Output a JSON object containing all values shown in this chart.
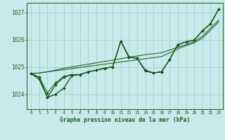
{
  "background_color": "#c8eaea",
  "grid_color": "#aacfcf",
  "line_color": "#1a5c1a",
  "title": "Graphe pression niveau de la mer (hPa)",
  "xlabel_hours": [
    0,
    1,
    2,
    3,
    4,
    5,
    6,
    7,
    8,
    9,
    10,
    11,
    12,
    13,
    14,
    15,
    16,
    17,
    18,
    19,
    20,
    21,
    22,
    23
  ],
  "yticks": [
    1024,
    1025,
    1026,
    1027
  ],
  "ylim": [
    1023.45,
    1027.35
  ],
  "xlim": [
    -0.5,
    23.5
  ],
  "series": [
    [
      1024.75,
      1024.62,
      1023.88,
      1024.0,
      1024.22,
      1024.68,
      1024.72,
      1024.82,
      1024.88,
      1024.95,
      1025.0,
      1025.95,
      1025.38,
      1025.32,
      1024.88,
      1024.78,
      1024.82,
      1025.28,
      1025.82,
      1025.92,
      1025.98,
      1026.32,
      1026.58,
      1027.12
    ],
    [
      1024.75,
      1024.62,
      1023.88,
      1024.0,
      1024.22,
      1024.68,
      1024.72,
      1024.82,
      1024.88,
      1024.95,
      1025.0,
      1025.95,
      1025.38,
      1025.32,
      1024.88,
      1024.78,
      1024.82,
      1025.28,
      1025.82,
      1025.92,
      1025.98,
      1026.32,
      1026.58,
      1027.12
    ],
    [
      1024.75,
      1024.55,
      1023.88,
      1024.35,
      1024.62,
      1024.72,
      1024.72,
      1024.82,
      1024.88,
      1024.95,
      1025.0,
      1025.95,
      1025.35,
      1025.32,
      1024.85,
      1024.78,
      1024.82,
      1025.28,
      1025.82,
      1025.92,
      1025.98,
      1026.32,
      1026.58,
      1027.12
    ],
    [
      1024.75,
      1024.55,
      1023.88,
      1024.35,
      1024.62,
      1024.72,
      1024.72,
      1024.82,
      1024.88,
      1024.95,
      1025.0,
      1025.95,
      1025.35,
      1025.32,
      1024.85,
      1024.78,
      1024.82,
      1025.28,
      1025.82,
      1025.92,
      1025.98,
      1026.32,
      1026.58,
      1027.12
    ],
    [
      1024.75,
      1024.62,
      1024.05,
      1024.42,
      1024.65,
      1024.72,
      1024.72,
      1024.82,
      1024.88,
      1024.95,
      1025.0,
      1025.95,
      1025.35,
      1025.32,
      1024.85,
      1024.78,
      1024.82,
      1025.28,
      1025.82,
      1025.92,
      1025.98,
      1026.32,
      1026.58,
      1027.12
    ]
  ],
  "smooth_series": [
    [
      1024.75,
      1024.78,
      1024.82,
      1024.86,
      1024.9,
      1024.94,
      1024.98,
      1025.02,
      1025.06,
      1025.1,
      1025.14,
      1025.18,
      1025.22,
      1025.26,
      1025.3,
      1025.34,
      1025.38,
      1025.52,
      1025.66,
      1025.78,
      1025.88,
      1026.05,
      1026.35,
      1026.65
    ],
    [
      1024.75,
      1024.78,
      1024.82,
      1024.88,
      1024.95,
      1025.0,
      1025.05,
      1025.1,
      1025.15,
      1025.2,
      1025.25,
      1025.3,
      1025.35,
      1025.4,
      1025.45,
      1025.48,
      1025.52,
      1025.62,
      1025.72,
      1025.82,
      1025.92,
      1026.12,
      1026.42,
      1026.72
    ]
  ]
}
